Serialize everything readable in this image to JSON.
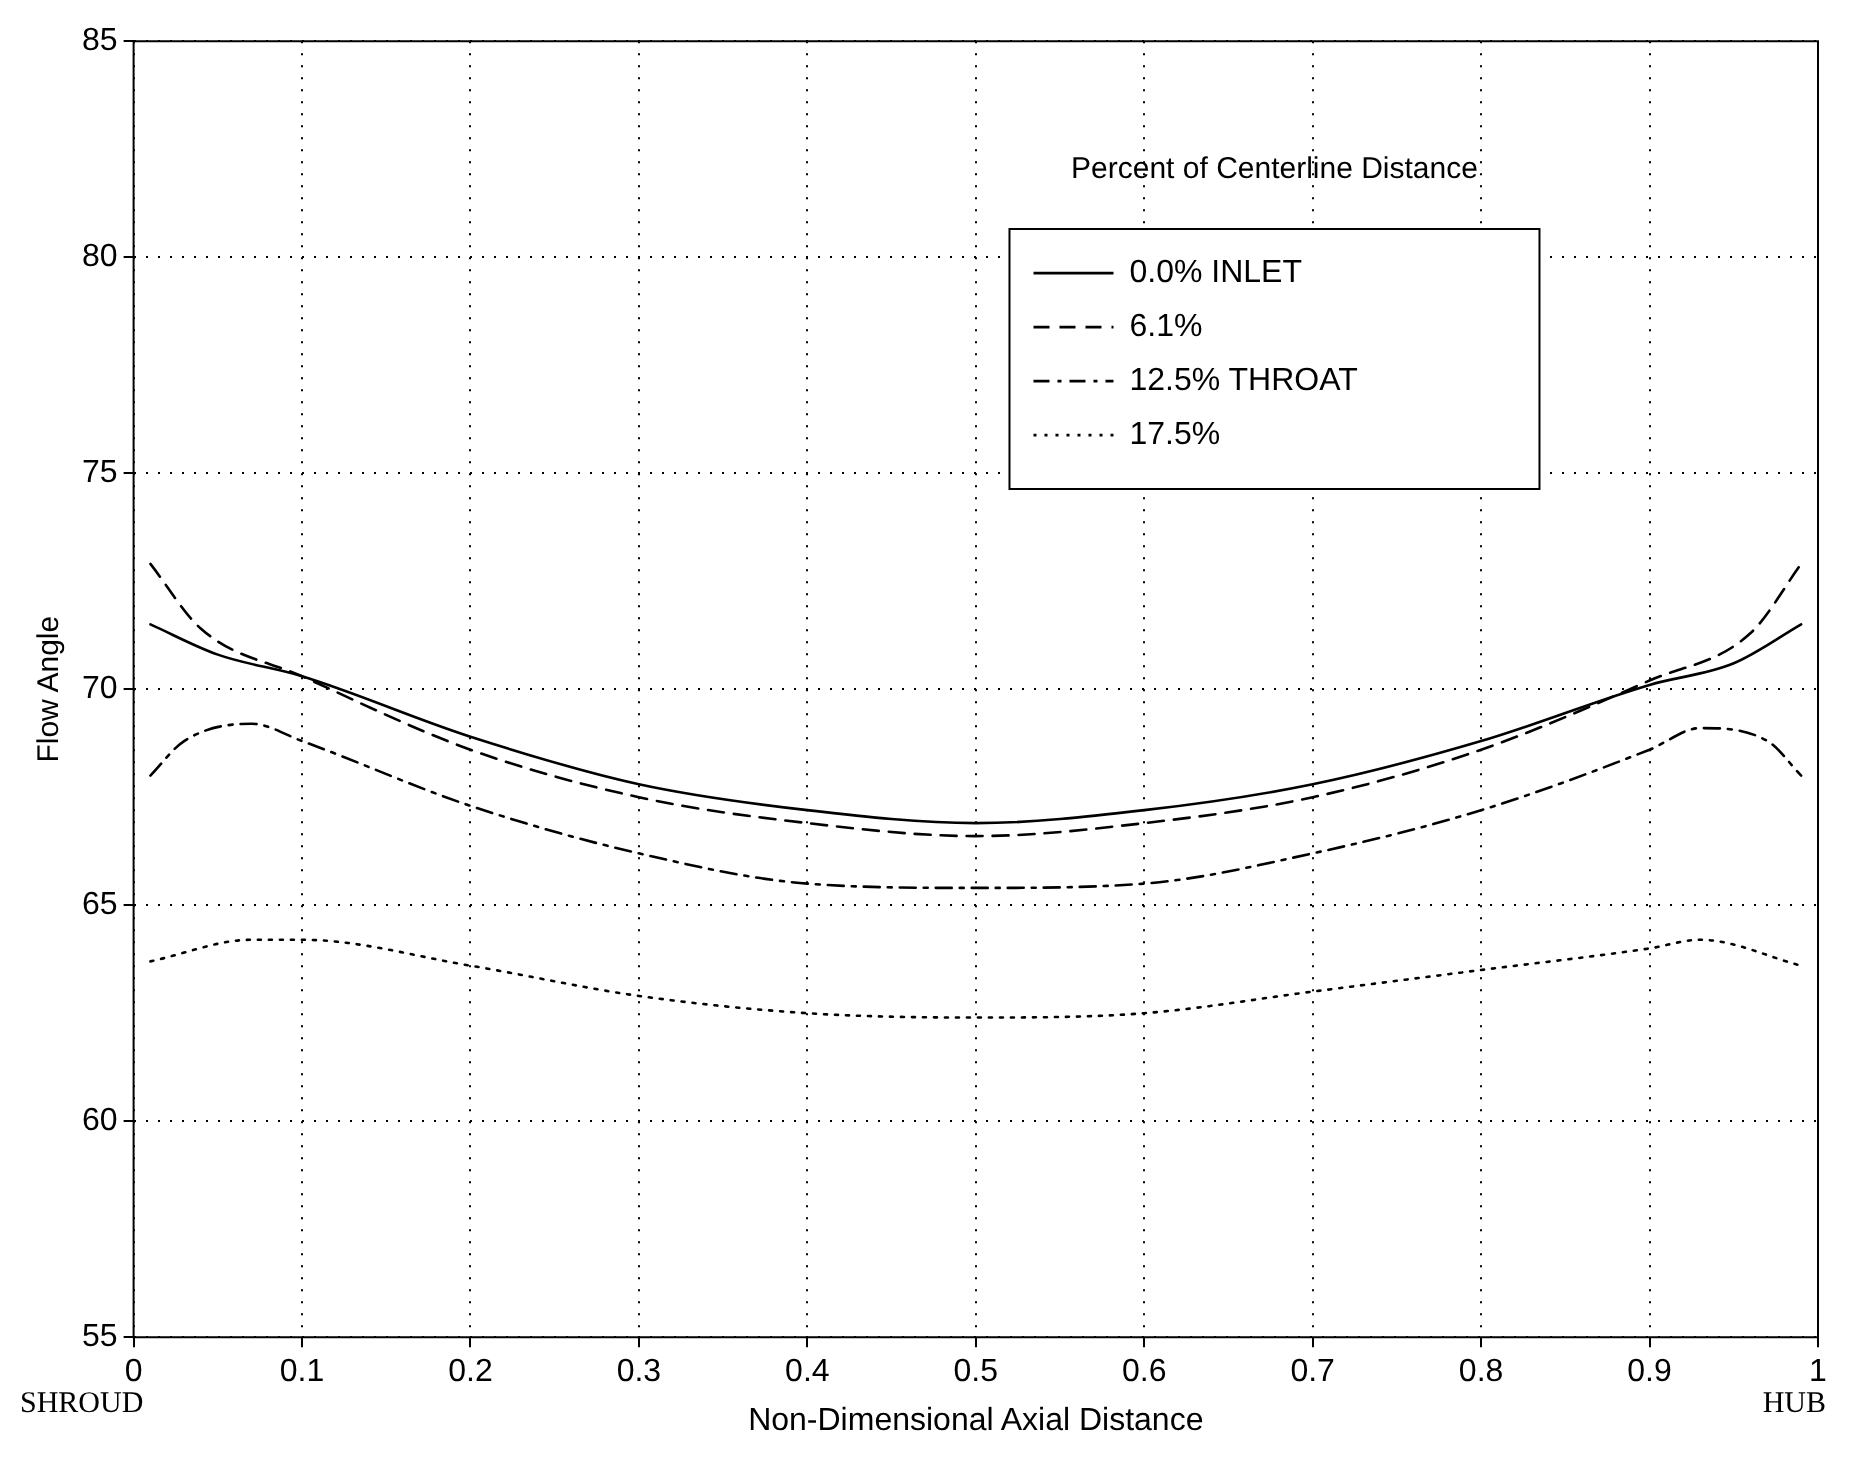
{
  "chart_data": {
    "type": "line",
    "xlabel": "Non-Dimensional Axial Distance",
    "ylabel": "Flow Angle",
    "legend_title": "Percent of Centerline Distance",
    "annotations": [
      "SHROUD",
      "HUB"
    ],
    "xlim": [
      0,
      1
    ],
    "xticks": [
      0,
      0.1,
      0.2,
      0.3,
      0.4,
      0.5,
      0.6,
      0.7,
      0.8,
      0.9,
      1
    ],
    "ylim": [
      55,
      85
    ],
    "yticks": [
      55,
      60,
      65,
      70,
      75,
      80,
      85
    ],
    "grid": true,
    "legend": "top right",
    "marker": "none",
    "series": [
      {
        "name": "0.0% INLET",
        "color": "#000000",
        "line_style": "solid",
        "x": [
          0.01,
          0.05,
          0.1,
          0.2,
          0.3,
          0.4,
          0.5,
          0.6,
          0.7,
          0.8,
          0.9,
          0.95,
          0.99
        ],
        "values": [
          71.5,
          70.8,
          70.3,
          68.9,
          67.8,
          67.2,
          66.9,
          67.2,
          67.8,
          68.8,
          70.1,
          70.6,
          71.5
        ]
      },
      {
        "name": "6.1%",
        "color": "#000000",
        "line_style": "dashed",
        "x": [
          0.01,
          0.04,
          0.1,
          0.2,
          0.3,
          0.4,
          0.5,
          0.6,
          0.7,
          0.8,
          0.9,
          0.96,
          0.99
        ],
        "values": [
          72.9,
          71.4,
          70.3,
          68.6,
          67.5,
          66.9,
          66.6,
          66.9,
          67.5,
          68.6,
          70.2,
          71.3,
          72.9
        ]
      },
      {
        "name": "12.5% THROAT",
        "color": "#000000",
        "line_style": "dashdot",
        "x": [
          0.01,
          0.03,
          0.07,
          0.1,
          0.2,
          0.3,
          0.4,
          0.5,
          0.6,
          0.7,
          0.8,
          0.9,
          0.93,
          0.97,
          0.99
        ],
        "values": [
          68.0,
          68.8,
          69.2,
          68.8,
          67.3,
          66.2,
          65.5,
          65.4,
          65.5,
          66.2,
          67.2,
          68.6,
          69.1,
          68.8,
          68.0
        ]
      },
      {
        "name": "17.5%",
        "color": "#000000",
        "line_style": "dotted",
        "x": [
          0.01,
          0.07,
          0.1,
          0.2,
          0.3,
          0.4,
          0.5,
          0.6,
          0.7,
          0.8,
          0.9,
          0.93,
          0.99
        ],
        "values": [
          63.7,
          64.2,
          64.2,
          63.6,
          62.9,
          62.5,
          62.4,
          62.5,
          63.0,
          63.5,
          64.0,
          64.2,
          63.6
        ]
      }
    ]
  }
}
